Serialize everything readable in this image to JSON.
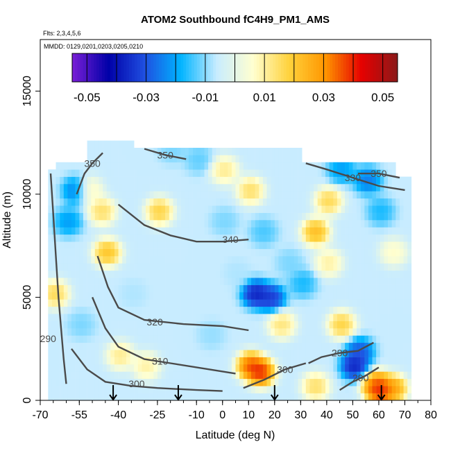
{
  "chart_data": {
    "type": "heatmap",
    "title": "ATOM2 Southbound fC4H9_PM1_AMS",
    "flights_note": "Flts: 2,3,4,5,6",
    "dates_note": "MMDD: 0129,0201,0203,0205,0210",
    "xlabel": "Latitude (deg N)",
    "ylabel": "Altitude (m)",
    "xlim": [
      -70,
      80
    ],
    "ylim": [
      0,
      17500
    ],
    "x_ticks": [
      -70,
      -55,
      -40,
      -25,
      -10,
      0,
      10,
      20,
      30,
      40,
      50,
      60,
      70,
      80
    ],
    "x_tick_labels": [
      "-70",
      "-55",
      "-40",
      "-25",
      "-10",
      "0",
      "10",
      "20",
      "30",
      "40",
      "50",
      "60",
      "70",
      "80"
    ],
    "y_ticks": [
      0,
      5000,
      10000,
      15000
    ],
    "y_tick_labels": [
      "0",
      "5000",
      "10000",
      "15000"
    ],
    "colorbar": {
      "range": [
        -0.055,
        0.055
      ],
      "tick_values": [
        -0.05,
        -0.03,
        -0.01,
        0.01,
        0.03,
        0.05
      ],
      "tick_labels": [
        "-0.05",
        "-0.03",
        "-0.01",
        "0.01",
        "0.03",
        "0.05"
      ],
      "divider_values": [
        -0.04,
        -0.02,
        0.0,
        0.02,
        0.04
      ],
      "colors": [
        "#7a1fd6",
        "#0000a8",
        "#1f4fe0",
        "#00b4ff",
        "#c8ecff",
        "#ffffd0",
        "#ffd23c",
        "#ff9600",
        "#e60000",
        "#8b1a1a"
      ]
    },
    "cells": [
      {
        "lat": -57,
        "alt": 10000,
        "v": -0.03
      },
      {
        "lat": -52,
        "alt": 10000,
        "v": 0.012
      },
      {
        "lat": -47,
        "alt": 9000,
        "v": 0.02
      },
      {
        "lat": -60,
        "alt": 8500,
        "v": -0.025
      },
      {
        "lat": -45,
        "alt": 7000,
        "v": 0.028
      },
      {
        "lat": -65,
        "alt": 5000,
        "v": 0.022
      },
      {
        "lat": -55,
        "alt": 3500,
        "v": -0.012
      },
      {
        "lat": -40,
        "alt": 2000,
        "v": 0.016
      },
      {
        "lat": -30,
        "alt": 1500,
        "v": 0.014
      },
      {
        "lat": -20,
        "alt": 12000,
        "v": -0.012
      },
      {
        "lat": -10,
        "alt": 11500,
        "v": -0.014
      },
      {
        "lat": 0,
        "alt": 11000,
        "v": 0.016
      },
      {
        "lat": 10,
        "alt": 10000,
        "v": 0.02
      },
      {
        "lat": -25,
        "alt": 9000,
        "v": 0.024
      },
      {
        "lat": 0,
        "alt": 8500,
        "v": -0.012
      },
      {
        "lat": 15,
        "alt": 8000,
        "v": -0.016
      },
      {
        "lat": 12,
        "alt": 5000,
        "v": -0.045
      },
      {
        "lat": 18,
        "alt": 4800,
        "v": -0.04
      },
      {
        "lat": 10,
        "alt": 1500,
        "v": 0.045
      },
      {
        "lat": 14,
        "alt": 1200,
        "v": 0.05
      },
      {
        "lat": 22,
        "alt": 3500,
        "v": 0.018
      },
      {
        "lat": 30,
        "alt": 5500,
        "v": -0.02
      },
      {
        "lat": 35,
        "alt": 8000,
        "v": 0.03
      },
      {
        "lat": 40,
        "alt": 9500,
        "v": 0.022
      },
      {
        "lat": 45,
        "alt": 11000,
        "v": -0.025
      },
      {
        "lat": 55,
        "alt": 10500,
        "v": -0.03
      },
      {
        "lat": 60,
        "alt": 9000,
        "v": -0.02
      },
      {
        "lat": 50,
        "alt": 1500,
        "v": -0.045
      },
      {
        "lat": 52,
        "alt": 2200,
        "v": -0.035
      },
      {
        "lat": 45,
        "alt": 3500,
        "v": 0.024
      },
      {
        "lat": 60,
        "alt": 300,
        "v": 0.052
      },
      {
        "lat": 58,
        "alt": 600,
        "v": 0.04
      },
      {
        "lat": 65,
        "alt": 400,
        "v": 0.034
      },
      {
        "lat": 35,
        "alt": 500,
        "v": 0.02
      },
      {
        "lat": -5,
        "alt": 3000,
        "v": -0.01
      },
      {
        "lat": 25,
        "alt": 6500,
        "v": -0.012
      },
      {
        "lat": 5,
        "alt": 6000,
        "v": -0.008
      },
      {
        "lat": -35,
        "alt": 5000,
        "v": -0.008
      },
      {
        "lat": 40,
        "alt": 6500,
        "v": 0.014
      },
      {
        "lat": 65,
        "alt": 7000,
        "v": 0.01
      }
    ],
    "contours": [
      {
        "label": "290",
        "label_at": [
          -67,
          3000
        ],
        "points": [
          [
            -66,
            11000
          ],
          [
            -65,
            9000
          ],
          [
            -64,
            7000
          ],
          [
            -63,
            5000
          ],
          [
            -62,
            3500
          ],
          [
            -61,
            2000
          ],
          [
            -60,
            800
          ]
        ]
      },
      {
        "label": "290",
        "label_at": [
          45,
          2300
        ],
        "points": [
          [
            33,
            1800
          ],
          [
            38,
            2100
          ],
          [
            45,
            2300
          ],
          [
            52,
            2400
          ],
          [
            58,
            2800
          ]
        ]
      },
      {
        "label": "290",
        "label_at": [
          53,
          1100
        ],
        "points": [
          [
            45,
            500
          ],
          [
            50,
            900
          ],
          [
            55,
            1200
          ],
          [
            60,
            1600
          ]
        ]
      },
      {
        "label": "300",
        "label_at": [
          -33,
          800
        ],
        "points": [
          [
            -58,
            2500
          ],
          [
            -52,
            1500
          ],
          [
            -45,
            900
          ],
          [
            -35,
            700
          ],
          [
            -25,
            600
          ],
          [
            -10,
            500
          ],
          [
            0,
            450
          ]
        ]
      },
      {
        "label": "300",
        "label_at": [
          24,
          1500
        ],
        "points": [
          [
            8,
            600
          ],
          [
            16,
            1000
          ],
          [
            24,
            1500
          ],
          [
            32,
            1800
          ]
        ]
      },
      {
        "label": "310",
        "label_at": [
          -24,
          1900
        ],
        "points": [
          [
            -50,
            5000
          ],
          [
            -45,
            3500
          ],
          [
            -40,
            2600
          ],
          [
            -30,
            2000
          ],
          [
            -20,
            1800
          ],
          [
            -5,
            1500
          ],
          [
            5,
            1300
          ]
        ]
      },
      {
        "label": "320",
        "label_at": [
          -26,
          3800
        ],
        "points": [
          [
            -48,
            7000
          ],
          [
            -44,
            5500
          ],
          [
            -40,
            4500
          ],
          [
            -30,
            3900
          ],
          [
            -15,
            3700
          ],
          [
            0,
            3600
          ],
          [
            10,
            3400
          ]
        ]
      },
      {
        "label": "330",
        "label_at": [
          50,
          10800
        ],
        "points": [
          [
            32,
            11500
          ],
          [
            40,
            11200
          ],
          [
            50,
            10800
          ],
          [
            60,
            10400
          ],
          [
            70,
            10200
          ]
        ]
      },
      {
        "label": "340",
        "label_at": [
          3,
          7800
        ],
        "points": [
          [
            -40,
            9500
          ],
          [
            -30,
            8500
          ],
          [
            -20,
            8000
          ],
          [
            -10,
            7700
          ],
          [
            0,
            7700
          ],
          [
            10,
            7800
          ]
        ]
      },
      {
        "label": "350",
        "label_at": [
          -50,
          11500
        ],
        "points": [
          [
            -56,
            10000
          ],
          [
            -53,
            11000
          ],
          [
            -50,
            11500
          ],
          [
            -46,
            12000
          ]
        ]
      },
      {
        "label": "350",
        "label_at": [
          -22,
          11900
        ],
        "points": [
          [
            -30,
            12200
          ],
          [
            -22,
            11900
          ],
          [
            -14,
            11700
          ]
        ]
      },
      {
        "label": "350",
        "label_at": [
          60,
          11000
        ],
        "points": [
          [
            52,
            11000
          ],
          [
            60,
            11000
          ],
          [
            68,
            10800
          ]
        ]
      }
    ],
    "arrows_at_lat": [
      -42,
      -17,
      20,
      61
    ]
  }
}
